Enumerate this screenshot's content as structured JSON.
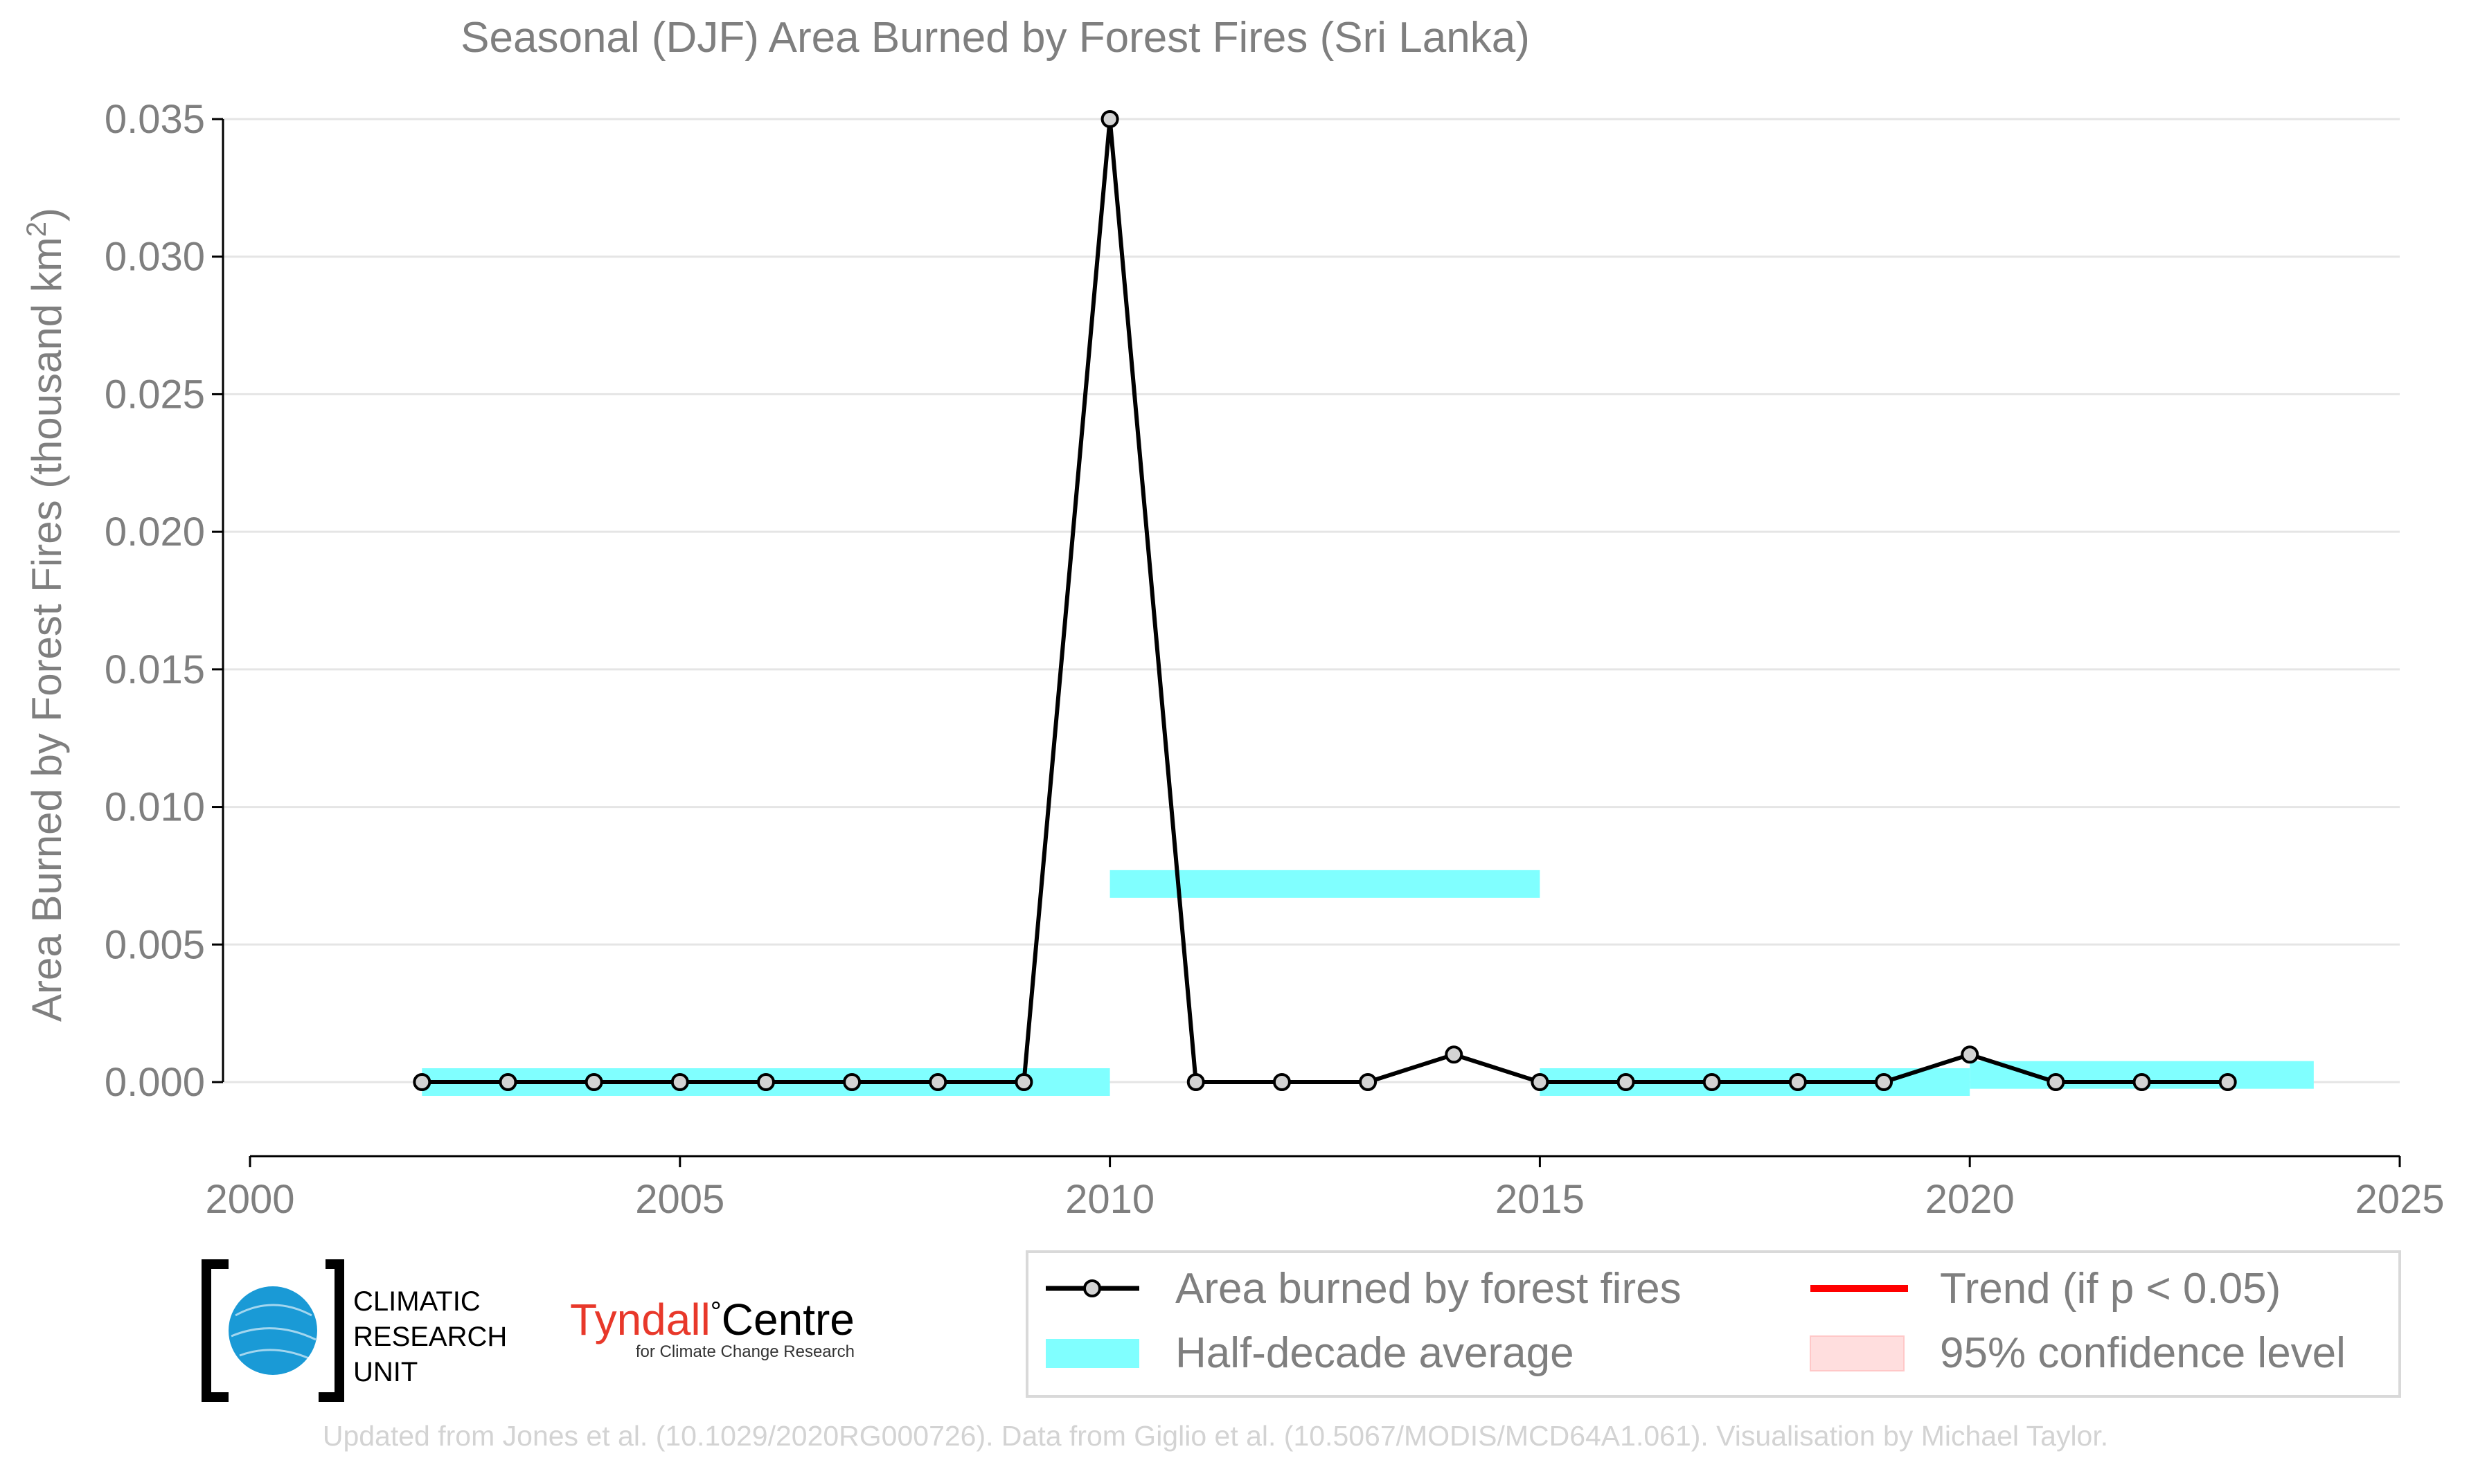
{
  "chart_data": {
    "type": "line",
    "title": "Seasonal (DJF) Area Burned by Forest Fires (Sri Lanka)",
    "xlabel": "",
    "ylabel": "Area Burned by Forest Fires (thousand km",
    "ylabel_sup": "2",
    "ylabel_close": ")",
    "xlim": [
      2000,
      2025
    ],
    "ylim": [
      -0.0027,
      0.035
    ],
    "x_ticks": [
      2000,
      2005,
      2010,
      2015,
      2020,
      2025
    ],
    "x_tick_labels": [
      "2000",
      "2005",
      "2010",
      "2015",
      "2020",
      "2025"
    ],
    "y_ticks": [
      0,
      0.005,
      0.01,
      0.015,
      0.02,
      0.025,
      0.03,
      0.035
    ],
    "y_tick_labels": [
      "0.000",
      "0.005",
      "0.010",
      "0.015",
      "0.020",
      "0.025",
      "0.030",
      "0.035"
    ],
    "grid": "horizontal",
    "legend_position": "bottom-right",
    "series": [
      {
        "name": "Area burned by forest fires",
        "color": "#000000",
        "marker_fill": "#d3d3d3",
        "x": [
          2002,
          2003,
          2004,
          2005,
          2006,
          2007,
          2008,
          2009,
          2010,
          2011,
          2012,
          2013,
          2014,
          2015,
          2016,
          2017,
          2018,
          2019,
          2020,
          2021,
          2022,
          2023
        ],
        "y": [
          0,
          0,
          0,
          0,
          0,
          0,
          0,
          0,
          0.035,
          0,
          0,
          0,
          0.001,
          0,
          0,
          0,
          0,
          0,
          0.001,
          0,
          0,
          0
        ]
      }
    ],
    "half_decade_average": {
      "name": "Half-decade average",
      "color": "#80ffff",
      "segments": [
        {
          "x0": 2002,
          "x1": 2010,
          "value": 0
        },
        {
          "x0": 2010,
          "x1": 2015,
          "value": 0.0072
        },
        {
          "x0": 2015,
          "x1": 2020,
          "value": 0
        },
        {
          "x0": 2020,
          "x1": 2024,
          "value": 0.00026
        }
      ]
    },
    "legend": [
      {
        "label": "Area burned by forest fires",
        "kind": "line-marker",
        "color": "#000000"
      },
      {
        "label": "Trend (if p < 0.05)",
        "kind": "line",
        "color": "#ff0000"
      },
      {
        "label": "Half-decade average",
        "kind": "band",
        "color": "#80ffff"
      },
      {
        "label": "95% confidence level",
        "kind": "band-light",
        "color": "#ffdede"
      }
    ]
  },
  "logos": {
    "cru_line1": "CLIMATIC",
    "cru_line2": "RESEARCH",
    "cru_line3": "UNIT",
    "tyndall_name": "Tyndall",
    "tyndall_degree": "°",
    "tyndall_centre": "Centre",
    "tyndall_sub": "for Climate Change Research",
    "tyndall_red": "#e8382a",
    "cru_blue": "#1a9ad6"
  },
  "footer": {
    "credit": "Updated from Jones et al. (10.1029/2020RG000726). Data from Giglio et al. (10.5067/MODIS/MCD64A1.061). Visualisation by Michael Taylor."
  }
}
